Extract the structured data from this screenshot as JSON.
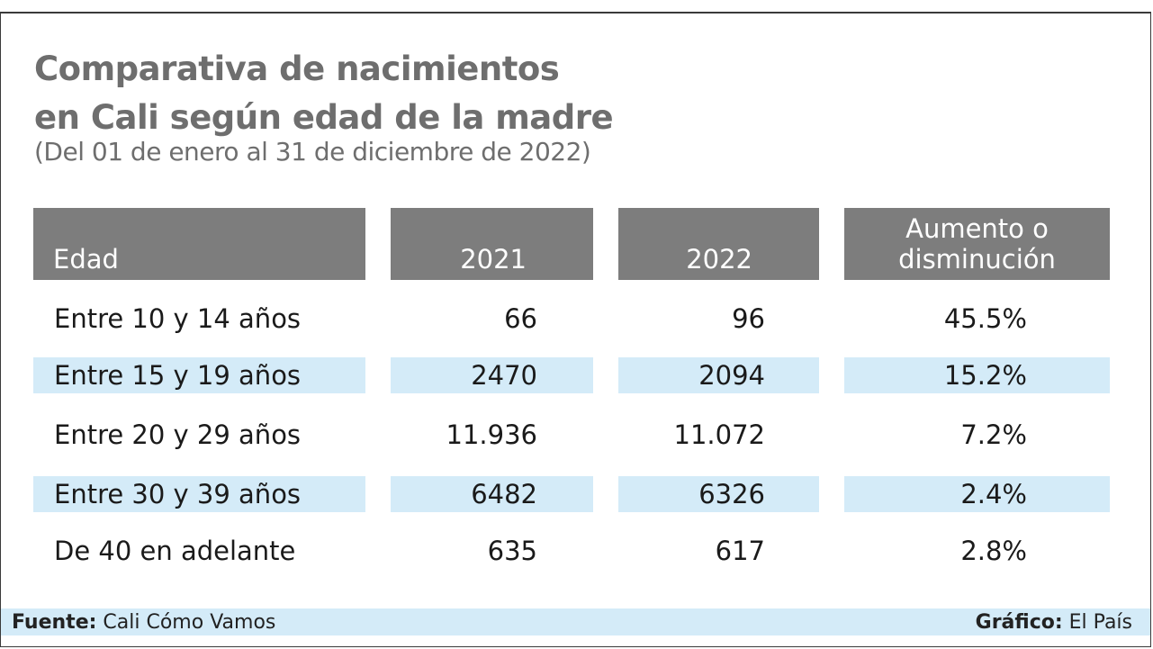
{
  "chart_data": {
    "type": "table",
    "title_line1": "Comparativa de nacimientos",
    "title_line2": "en Cali según edad de la madre",
    "subtitle": "(Del 01 de enero al 31 de diciembre de 2022)",
    "columns": [
      "Edad",
      "2021",
      "2022",
      "Aumento o",
      "disminución"
    ],
    "rows": [
      {
        "edad": "Entre 10 y 14 años",
        "y2021": "66",
        "y2022": "96",
        "cambio": "45.5%"
      },
      {
        "edad": "Entre 15 y 19 años",
        "y2021": "2470",
        "y2022": "2094",
        "cambio": "15.2%"
      },
      {
        "edad": "Entre 20 y 29 años",
        "y2021": "11.936",
        "y2022": "11.072",
        "cambio": "7.2%"
      },
      {
        "edad": "Entre 30 y 39 años",
        "y2021": "6482",
        "y2022": "6326",
        "cambio": "2.4%"
      },
      {
        "edad": "De 40 en adelante",
        "y2021": "635",
        "y2022": "617",
        "cambio": "2.8%"
      }
    ]
  },
  "footer": {
    "source_label": "Fuente:",
    "source_value": "Cali Cómo Vamos",
    "credit_label": "Gráfico:",
    "credit_value": "El País"
  },
  "colors": {
    "header_bg": "#7d7d7d",
    "band_bg": "#d4ebf8",
    "title": "#6e6e6e"
  }
}
